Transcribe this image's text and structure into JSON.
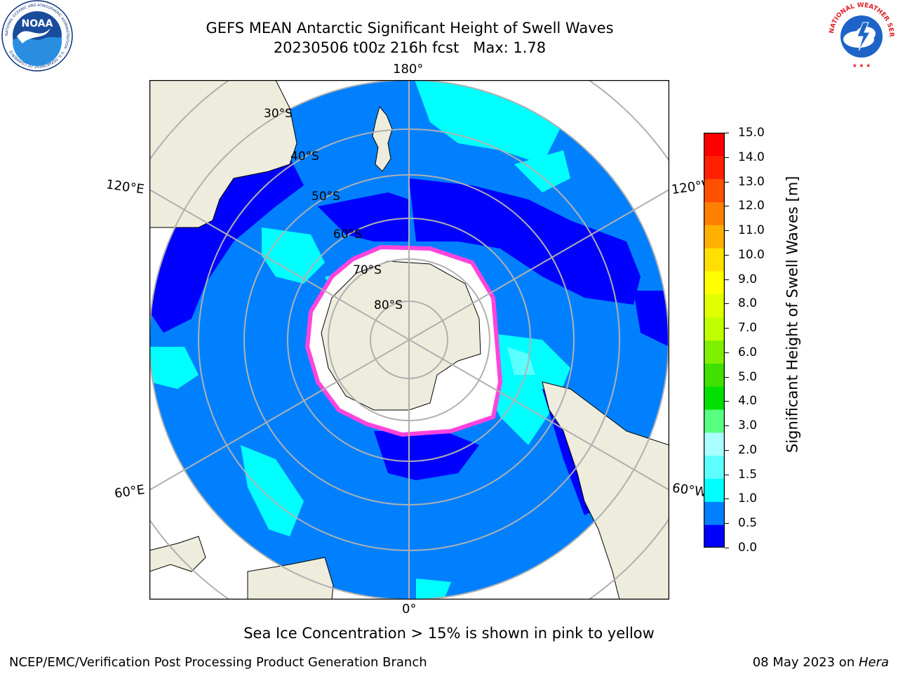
{
  "header": {
    "title": "GEFS MEAN Antarctic Significant Height of Swell Waves",
    "subtitle": "20230506 t00z 216h fcst   Max: 1.78"
  },
  "logos": {
    "noaa_text": "NOAA",
    "noaa_ring": "NATIONAL OCEANIC AND ATMOSPHERIC ADMINISTRATION · U.S. DEPARTMENT OF COMMERCE",
    "nws_ring": "NATIONAL WEATHER SERVICE"
  },
  "map": {
    "longitude_labels": {
      "top": "180°",
      "bottom": "0°",
      "upper_left": "120°E",
      "lower_left": "60°E",
      "upper_right": "120°W",
      "lower_right": "60°W"
    },
    "latitude_labels": [
      "30°S",
      "40°S",
      "50°S",
      "60°S",
      "70°S",
      "80°S"
    ],
    "colors": {
      "ocean_low": "#0000ff",
      "ocean": "#0080ff",
      "ocean_mid": "#00ffff",
      "ocean_high": "#5cffff",
      "land": "#eeecdc",
      "ice": "#ffffff",
      "sea_ice_edge": "#ff44dd"
    }
  },
  "colorbar": {
    "label": "Significant Height of Swell Waves [m]",
    "ticks": [
      "15.0",
      "14.0",
      "13.0",
      "12.0",
      "11.0",
      "10.0",
      "9.0",
      "8.0",
      "7.0",
      "6.0",
      "5.0",
      "4.0",
      "3.0",
      "2.0",
      "1.5",
      "1.0",
      "0.5",
      "0.0"
    ],
    "colors_bottom_to_top": [
      "#0000ff",
      "#0080ff",
      "#00ffff",
      "#5cffff",
      "#a9ffff",
      "#58ff80",
      "#00e000",
      "#40e000",
      "#80f000",
      "#c0ff00",
      "#e0ff00",
      "#ffff00",
      "#ffe000",
      "#ffb000",
      "#ff8000",
      "#ff5000",
      "#ff2000",
      "#ff0000"
    ]
  },
  "note": "Sea Ice Concentration > 15% is shown in pink to yellow",
  "footer": {
    "left": "NCEP/EMC/Verification Post Processing Product Generation Branch",
    "date": "08 May 2023 on ",
    "host": "Hera"
  }
}
